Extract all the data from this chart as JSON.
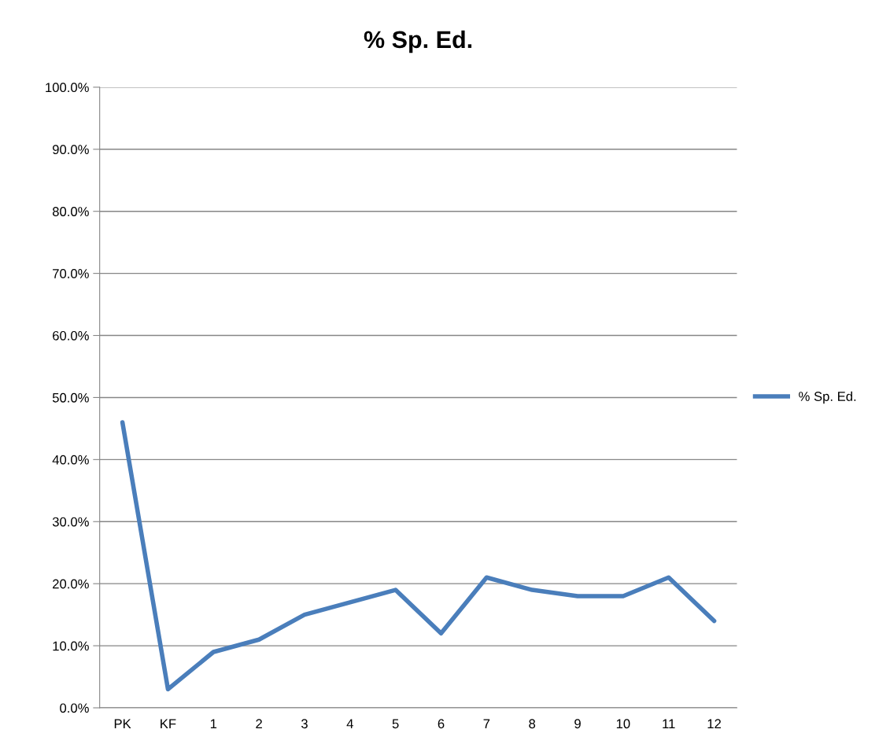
{
  "chart_data": {
    "type": "line",
    "title": "% Sp. Ed.",
    "categories": [
      "PK",
      "KF",
      "1",
      "2",
      "3",
      "4",
      "5",
      "6",
      "7",
      "8",
      "9",
      "10",
      "11",
      "12"
    ],
    "series": [
      {
        "name": "% Sp. Ed.",
        "color": "#4a7ebb",
        "values": [
          46,
          3,
          9,
          11,
          15,
          17,
          19,
          12,
          21,
          19,
          18,
          18,
          21,
          14
        ]
      }
    ],
    "ylim": [
      0,
      100
    ],
    "yticks": [
      {
        "value": 0,
        "label": "0.0%"
      },
      {
        "value": 10,
        "label": "10.0%"
      },
      {
        "value": 20,
        "label": "20.0%"
      },
      {
        "value": 30,
        "label": "30.0%"
      },
      {
        "value": 40,
        "label": "40.0%"
      },
      {
        "value": 50,
        "label": "50.0%"
      },
      {
        "value": 60,
        "label": "60.0%"
      },
      {
        "value": 70,
        "label": "70.0%"
      },
      {
        "value": 80,
        "label": "80.0%"
      },
      {
        "value": 90,
        "label": "90.0%"
      },
      {
        "value": 100,
        "label": "100.0%"
      }
    ],
    "grid": "y",
    "legend": "right",
    "marker": "none",
    "line_style": "solid"
  }
}
